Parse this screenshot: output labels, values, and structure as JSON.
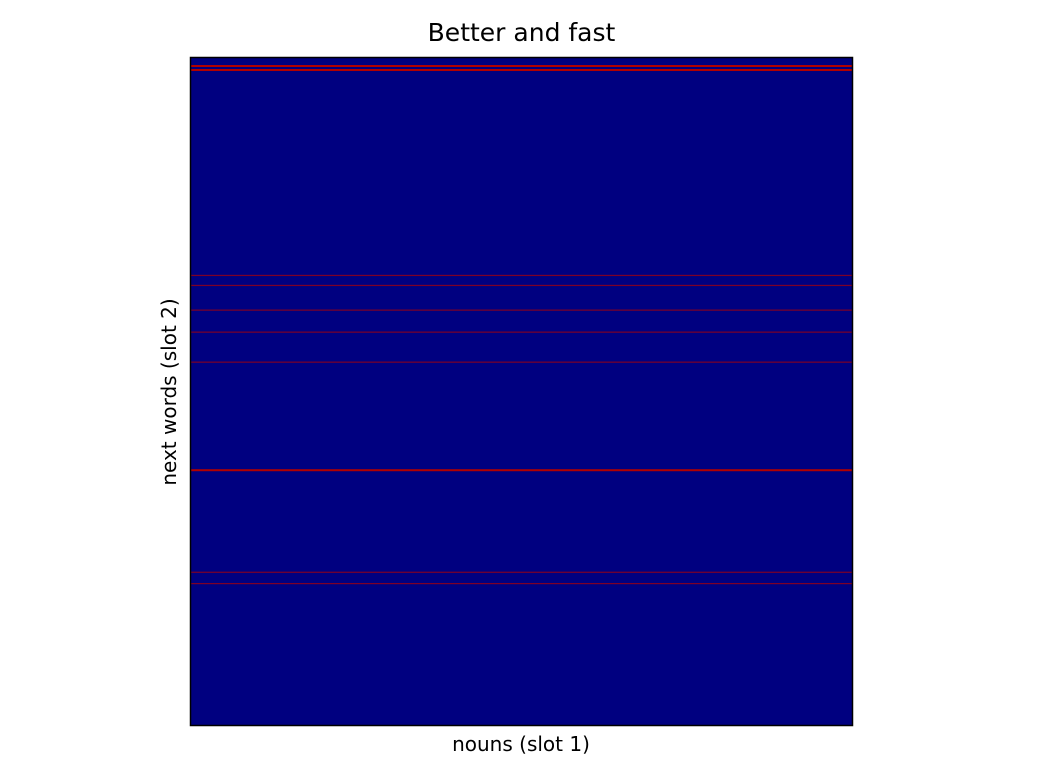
{
  "chart_data": {
    "type": "heatmap",
    "title": "Better and fast",
    "xlabel": "nouns (slot 1)",
    "ylabel": "next words (slot 2)",
    "ticks": "none",
    "colormap": "jet",
    "colors": {
      "low": "#000080",
      "high": "#b20000"
    },
    "rows_axis": {
      "min": 0,
      "max": 1
    },
    "highlighted_rows": [
      {
        "pos": 0.012,
        "value": 1.0
      },
      {
        "pos": 0.018,
        "value": 1.0
      },
      {
        "pos": 0.326,
        "value": 0.7
      },
      {
        "pos": 0.341,
        "value": 0.7
      },
      {
        "pos": 0.378,
        "value": 0.7
      },
      {
        "pos": 0.411,
        "value": 0.7
      },
      {
        "pos": 0.456,
        "value": 0.7
      },
      {
        "pos": 0.618,
        "value": 1.0
      },
      {
        "pos": 0.771,
        "value": 0.7
      },
      {
        "pos": 0.788,
        "value": 0.7
      }
    ]
  }
}
